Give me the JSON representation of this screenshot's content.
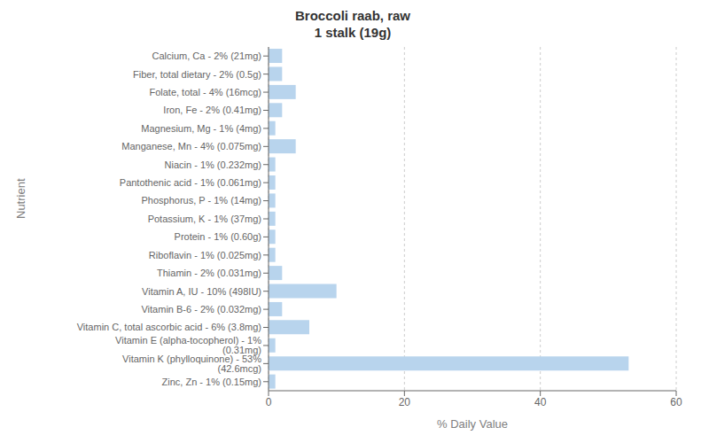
{
  "chart_data": {
    "type": "bar",
    "title": "Broccoli raab, raw\n1 stalk (19g)",
    "xlabel": "% Daily Value",
    "ylabel": "Nutrient",
    "orientation": "horizontal",
    "categories": [
      "Calcium, Ca - 2% (21mg)",
      "Fiber, total dietary - 2% (0.5g)",
      "Folate, total - 4% (16mcg)",
      "Iron, Fe - 2% (0.41mg)",
      "Magnesium, Mg - 1% (4mg)",
      "Manganese, Mn - 4% (0.075mg)",
      "Niacin - 1% (0.232mg)",
      "Pantothenic acid - 1% (0.061mg)",
      "Phosphorus, P - 1% (14mg)",
      "Potassium, K - 1% (37mg)",
      "Protein - 1% (0.60g)",
      "Riboflavin - 1% (0.025mg)",
      "Thiamin - 2% (0.031mg)",
      "Vitamin A, IU - 10% (498IU)",
      "Vitamin B-6 - 2% (0.032mg)",
      "Vitamin C, total ascorbic acid - 6% (3.8mg)",
      "Vitamin E (alpha-tocopherol) - 1% (0.31mg)",
      "Vitamin K (phylloquinone) - 53% (42.6mcg)",
      "Zinc, Zn - 1% (0.15mg)"
    ],
    "values": [
      2,
      2,
      4,
      2,
      1,
      4,
      1,
      1,
      1,
      1,
      1,
      1,
      2,
      10,
      2,
      6,
      1,
      53,
      1
    ],
    "color": "#b8d4ed",
    "xlim": [
      0,
      60
    ],
    "xticks": [
      0,
      20,
      40,
      60
    ],
    "grid": true
  }
}
